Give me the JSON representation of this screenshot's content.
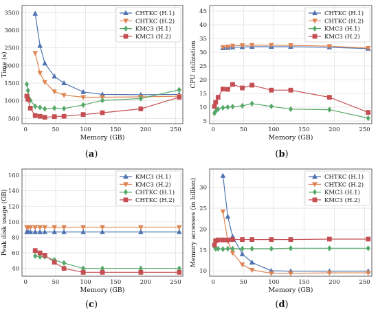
{
  "colors": {
    "blue": "#4c72b0",
    "orange": "#dd8452",
    "green": "#55a868",
    "red": "#c44e52",
    "grid": "#e3e3e3",
    "axis": "#333333"
  },
  "chart_data": [
    {
      "type": "line",
      "panel": "a",
      "caption_letter": "a",
      "xlabel": "Memory (GB)",
      "ylabel": "Time (s)",
      "xlim": [
        -6,
        262
      ],
      "ylim": [
        350,
        3700
      ],
      "xticks": [
        0,
        50,
        100,
        150,
        200,
        250
      ],
      "yticks": [
        500,
        1000,
        1500,
        2000,
        2500,
        3000,
        3500
      ],
      "grid": true,
      "legend_position": "top-right",
      "series": [
        {
          "name": "CHTKC (H.1)",
          "color": "#4c72b0",
          "marker": "triangle-up",
          "x": [
            16,
            24,
            32,
            48,
            64,
            96,
            128,
            192,
            256
          ],
          "y": [
            3470,
            2560,
            2060,
            1690,
            1500,
            1250,
            1180,
            1170,
            1180
          ]
        },
        {
          "name": "CHTKC (H.2)",
          "color": "#dd8452",
          "marker": "triangle-down",
          "x": [
            16,
            24,
            32,
            48,
            64,
            96,
            128,
            192,
            256
          ],
          "y": [
            2350,
            1790,
            1530,
            1260,
            1160,
            1100,
            1100,
            1110,
            1130
          ]
        },
        {
          "name": "KMC3 (H.1)",
          "color": "#55a868",
          "marker": "diamond",
          "x": [
            2,
            4,
            8,
            16,
            24,
            32,
            48,
            64,
            96,
            128,
            192,
            256
          ],
          "y": [
            1470,
            1290,
            1010,
            840,
            810,
            770,
            790,
            780,
            880,
            1010,
            1060,
            1310
          ]
        },
        {
          "name": "KMC3 (H.2)",
          "color": "#c44e52",
          "marker": "square",
          "x": [
            2,
            4,
            8,
            16,
            24,
            32,
            48,
            64,
            96,
            128,
            192,
            256
          ],
          "y": [
            1130,
            1040,
            790,
            580,
            560,
            530,
            550,
            560,
            610,
            660,
            770,
            1100
          ]
        }
      ]
    },
    {
      "type": "line",
      "panel": "b",
      "caption_letter": "b",
      "xlabel": "Memory (GB)",
      "ylabel": "CPU utilization",
      "xlim": [
        -6,
        262
      ],
      "ylim": [
        4,
        47
      ],
      "xticks": [
        0,
        50,
        100,
        150,
        200,
        250
      ],
      "yticks": [
        5,
        10,
        15,
        20,
        25,
        30,
        35,
        40,
        45
      ],
      "grid": true,
      "legend_position": "top-right",
      "series": [
        {
          "name": "CHTKC (H.1)",
          "color": "#4c72b0",
          "marker": "triangle-up",
          "x": [
            16,
            24,
            32,
            48,
            64,
            96,
            128,
            192,
            256
          ],
          "y": [
            31.5,
            31.6,
            31.8,
            31.9,
            32.0,
            32.0,
            32.0,
            31.8,
            31.3
          ]
        },
        {
          "name": "CHTKC (H.2)",
          "color": "#dd8452",
          "marker": "triangle-down",
          "x": [
            16,
            24,
            32,
            48,
            64,
            96,
            128,
            192,
            256
          ],
          "y": [
            31.8,
            32.0,
            32.3,
            32.5,
            32.6,
            32.6,
            32.5,
            32.2,
            31.5
          ]
        },
        {
          "name": "KMC3 (H.1)",
          "color": "#55a868",
          "marker": "diamond",
          "x": [
            2,
            4,
            8,
            16,
            24,
            32,
            48,
            64,
            96,
            128,
            192,
            256
          ],
          "y": [
            7.8,
            8.5,
            9.3,
            9.8,
            10.0,
            10.2,
            10.5,
            11.3,
            10.3,
            9.3,
            9.1,
            6.0
          ]
        },
        {
          "name": "KMC3 (H.2)",
          "color": "#c44e52",
          "marker": "square",
          "x": [
            2,
            4,
            8,
            16,
            24,
            32,
            48,
            64,
            96,
            128,
            192,
            256
          ],
          "y": [
            10.3,
            11.8,
            13.6,
            16.6,
            16.5,
            18.3,
            17.0,
            18.0,
            16.2,
            16.2,
            13.6,
            8.1
          ]
        }
      ]
    },
    {
      "type": "line",
      "panel": "c",
      "caption_letter": "c",
      "xlabel": "Memory (GB)",
      "ylabel": "Peak disk usage (GB)",
      "xlim": [
        -6,
        262
      ],
      "ylim": [
        30,
        168
      ],
      "xticks": [
        0,
        50,
        100,
        150,
        200,
        250
      ],
      "yticks": [
        40,
        60,
        80,
        100,
        120,
        140,
        160
      ],
      "grid": true,
      "legend_position": "top-right",
      "series": [
        {
          "name": "KMC3 (H.1)",
          "color": "#4c72b0",
          "marker": "triangle-up",
          "x": [
            2,
            4,
            8,
            16,
            24,
            32,
            48,
            64,
            96,
            128,
            192,
            256
          ],
          "y": [
            87,
            87,
            87,
            87,
            87,
            87,
            87,
            87,
            87,
            87,
            87,
            87
          ]
        },
        {
          "name": "KMC3 (H.2)",
          "color": "#dd8452",
          "marker": "triangle-down",
          "x": [
            2,
            4,
            8,
            16,
            24,
            32,
            48,
            64,
            96,
            128,
            192,
            256
          ],
          "y": [
            93,
            93,
            93,
            93,
            93,
            93,
            93,
            93,
            93,
            93,
            93,
            93
          ]
        },
        {
          "name": "CHTKC (H.1)",
          "color": "#55a868",
          "marker": "diamond",
          "x": [
            16,
            24,
            32,
            48,
            64,
            96,
            128,
            192,
            256
          ],
          "y": [
            56,
            55,
            55,
            51,
            47,
            40,
            40,
            40,
            40
          ]
        },
        {
          "name": "CHTKC (H.2)",
          "color": "#c44e52",
          "marker": "square",
          "x": [
            16,
            24,
            32,
            48,
            64,
            96,
            128,
            192,
            256
          ],
          "y": [
            63,
            60,
            57,
            48,
            40,
            35,
            35,
            35,
            35
          ]
        }
      ]
    },
    {
      "type": "line",
      "panel": "d",
      "caption_letter": "d",
      "xlabel": "Memory (GB)",
      "ylabel": "Memory accesses (in billion)",
      "xlim": [
        -6,
        262
      ],
      "ylim": [
        8.7,
        34.4
      ],
      "xticks": [
        0,
        50,
        100,
        150,
        200,
        250
      ],
      "yticks": [
        10,
        15,
        20,
        25,
        30
      ],
      "grid": true,
      "legend_position": "top-right",
      "series": [
        {
          "name": "CHTKC (H.1)",
          "color": "#4c72b0",
          "marker": "triangle-up",
          "x": [
            16,
            24,
            32,
            48,
            64,
            96,
            128,
            192,
            256
          ],
          "y": [
            32.8,
            23.0,
            18.2,
            14.0,
            12.0,
            10.0,
            9.9,
            9.9,
            9.9
          ]
        },
        {
          "name": "CHTKC (H.2)",
          "color": "#dd8452",
          "marker": "triangle-down",
          "x": [
            16,
            24,
            32,
            48,
            64,
            96,
            128,
            192,
            256
          ],
          "y": [
            24.2,
            17.1,
            14.3,
            11.5,
            10.2,
            9.4,
            9.4,
            9.5,
            9.5
          ]
        },
        {
          "name": "KMC3 (H.1)",
          "color": "#55a868",
          "marker": "diamond",
          "x": [
            2,
            4,
            8,
            16,
            24,
            32,
            48,
            64,
            96,
            128,
            192,
            256
          ],
          "y": [
            15.8,
            15.3,
            15.3,
            15.2,
            15.3,
            15.3,
            15.3,
            15.3,
            15.3,
            15.4,
            15.4,
            15.4
          ]
        },
        {
          "name": "KMC3 (H.2)",
          "color": "#c44e52",
          "marker": "square",
          "x": [
            2,
            4,
            8,
            16,
            24,
            32,
            48,
            64,
            96,
            128,
            192,
            256
          ],
          "y": [
            16.2,
            17.2,
            17.4,
            17.4,
            17.4,
            17.5,
            17.5,
            17.5,
            17.5,
            17.5,
            17.6,
            17.6
          ]
        }
      ]
    }
  ]
}
